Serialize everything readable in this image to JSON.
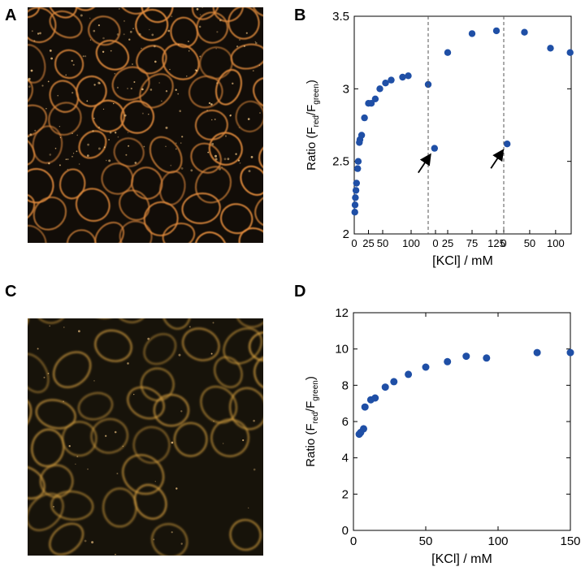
{
  "panels": {
    "A": {
      "letter": "A"
    },
    "B": {
      "letter": "B"
    },
    "C": {
      "letter": "C"
    },
    "D": {
      "letter": "D"
    }
  },
  "colors": {
    "marker": "#1f4fa6",
    "axis": "#000000",
    "micro_bg_A": "#120d08",
    "micro_membrane_A": "#e08a3c",
    "micro_bg_C": "#17130a",
    "micro_membrane_C": "#d6a040"
  },
  "chart_data": [
    {
      "id": "B",
      "type": "scatter",
      "ylabel_main": "Ratio (F",
      "ylabel_sub1": "red",
      "ylabel_mid": "/F",
      "ylabel_sub2": "green",
      "ylabel_end": ")",
      "xlabel": "[KCl] / mM",
      "ylim": [
        2,
        3.5
      ],
      "yticks": [
        "2",
        "2.5",
        "3",
        "3.5"
      ],
      "yticks_values": [
        2,
        2.5,
        3,
        3.5
      ],
      "segments": [
        {
          "xlim": [
            0,
            130
          ],
          "xticks": [
            0,
            25,
            50,
            100
          ],
          "xtick_labels": [
            "0",
            "25",
            "50",
            "100"
          ],
          "points": [
            [
              1,
              2.15
            ],
            [
              1.5,
              2.2
            ],
            [
              2,
              2.25
            ],
            [
              3,
              2.3
            ],
            [
              4,
              2.35
            ],
            [
              6,
              2.45
            ],
            [
              7,
              2.5
            ],
            [
              9,
              2.63
            ],
            [
              10,
              2.65
            ],
            [
              13,
              2.68
            ],
            [
              18,
              2.8
            ],
            [
              25,
              2.9
            ],
            [
              30,
              2.9
            ],
            [
              37,
              2.93
            ],
            [
              45,
              3.0
            ],
            [
              55,
              3.04
            ],
            [
              65,
              3.06
            ],
            [
              85,
              3.08
            ],
            [
              95,
              3.09
            ]
          ]
        },
        {
          "xlim": [
            -15,
            140
          ],
          "xticks": [
            0,
            25,
            75,
            125
          ],
          "xtick_labels": [
            "0",
            "25",
            "75",
            "125"
          ],
          "points": [
            [
              -15,
              3.03
            ],
            [
              -2,
              2.59
            ],
            [
              25,
              3.25
            ],
            [
              75,
              3.38
            ],
            [
              125,
              3.4
            ],
            [
              147,
              2.62
            ]
          ]
        },
        {
          "xlim": [
            0,
            130
          ],
          "xticks": [
            0,
            50,
            100
          ],
          "xtick_labels": [
            "0",
            "50",
            "100"
          ],
          "points": [
            [
              40,
              3.39
            ],
            [
              90,
              3.28
            ],
            [
              128,
              3.25
            ]
          ]
        }
      ],
      "arrows": [
        {
          "segment": 1,
          "x": -2,
          "y": 2.59
        },
        {
          "segment": 1,
          "x": 147,
          "y": 2.62
        }
      ],
      "divider_segments": [
        1,
        2
      ],
      "dashed_dividers": true
    },
    {
      "id": "D",
      "type": "scatter",
      "ylabel_main": "Ratio (F",
      "ylabel_sub1": "red",
      "ylabel_mid": "/F",
      "ylabel_sub2": "green",
      "ylabel_end": ")",
      "xlabel": "[KCl] / mM",
      "xlim": [
        0,
        150
      ],
      "ylim": [
        0,
        12
      ],
      "xticks": [
        "0",
        "50",
        "100",
        "150"
      ],
      "xticks_values": [
        0,
        50,
        100,
        150
      ],
      "yticks": [
        "0",
        "2",
        "4",
        "6",
        "8",
        "10",
        "12"
      ],
      "yticks_values": [
        0,
        2,
        4,
        6,
        8,
        10,
        12
      ],
      "points": [
        [
          4,
          5.3
        ],
        [
          5,
          5.4
        ],
        [
          7,
          5.6
        ],
        [
          8,
          6.8
        ],
        [
          12,
          7.2
        ],
        [
          15,
          7.3
        ],
        [
          22,
          7.9
        ],
        [
          28,
          8.2
        ],
        [
          38,
          8.6
        ],
        [
          50,
          9.0
        ],
        [
          65,
          9.3
        ],
        [
          78,
          9.6
        ],
        [
          92,
          9.5
        ],
        [
          127,
          9.8
        ],
        [
          150,
          9.8
        ]
      ]
    }
  ]
}
